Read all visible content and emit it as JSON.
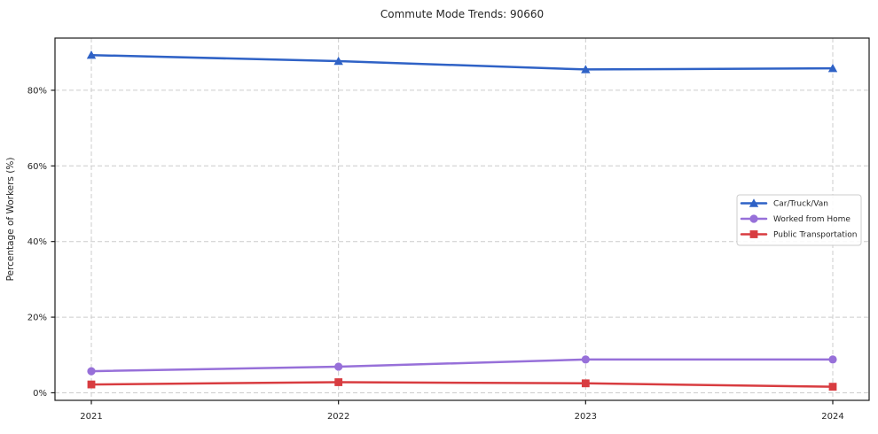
{
  "chart": {
    "title": "Commute Mode Trends: 90660",
    "ylabel": "Percentage of Workers (%)"
  },
  "chart_data": {
    "type": "line",
    "title": "Commute Mode Trends: 90660",
    "xlabel": "",
    "ylabel": "Percentage of Workers (%)",
    "categories": [
      "2021",
      "2022",
      "2023",
      "2024"
    ],
    "series": [
      {
        "name": "Car/Truck/Van",
        "marker": "triangle",
        "color": "#2f62c6",
        "values": [
          89.3,
          87.7,
          85.5,
          85.8
        ]
      },
      {
        "name": "Worked from Home",
        "marker": "circle",
        "color": "#9770d9",
        "values": [
          5.7,
          6.9,
          8.8,
          8.8
        ]
      },
      {
        "name": "Public Transportation",
        "marker": "square",
        "color": "#d83c40",
        "values": [
          2.2,
          2.8,
          2.5,
          1.6
        ]
      }
    ],
    "yticks": [
      0,
      20,
      40,
      60,
      80
    ],
    "ytick_labels": [
      "0%",
      "20%",
      "40%",
      "60%",
      "80%"
    ],
    "ylim": [
      -2,
      93.8
    ],
    "grid": true,
    "grid_style": "dashed",
    "grid_color": "#cccccc",
    "axis_color": "#1a1a1a",
    "legend_position": "center right",
    "background": "#ffffff"
  }
}
